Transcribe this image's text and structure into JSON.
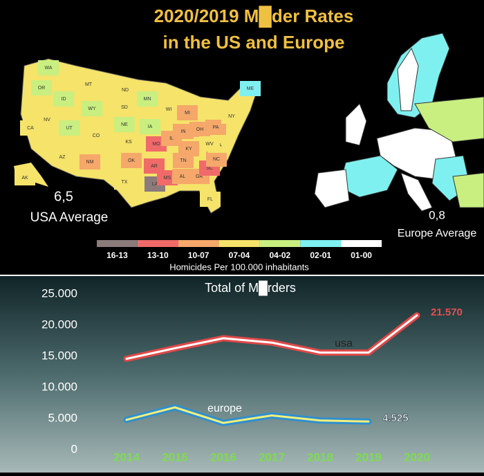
{
  "header": {
    "title_lines": [
      "2020/2019 M█der Rates",
      "in the US and Europe"
    ],
    "title_color": "#f0c040"
  },
  "maps": {
    "usa": {
      "average": "6,5",
      "average_label": "USA Average",
      "states": [
        {
          "label": "WA",
          "color": "#c8ef80"
        },
        {
          "label": "OR",
          "color": "#c8ef80"
        },
        {
          "label": "CA",
          "color": "#f5e36a"
        },
        {
          "label": "NV",
          "color": "#f5e36a"
        },
        {
          "label": "ID",
          "color": "#c8ef80"
        },
        {
          "label": "MT",
          "color": "#f5e36a"
        },
        {
          "label": "WY",
          "color": "#c8ef80"
        },
        {
          "label": "UT",
          "color": "#c8ef80"
        },
        {
          "label": "AZ",
          "color": "#f5e36a"
        },
        {
          "label": "CO",
          "color": "#f5e36a"
        },
        {
          "label": "NM",
          "color": "#f5a86a"
        },
        {
          "label": "ND",
          "color": "#f5e36a"
        },
        {
          "label": "SD",
          "color": "#f5e36a"
        },
        {
          "label": "NE",
          "color": "#c8ef80"
        },
        {
          "label": "KS",
          "color": "#f5e36a"
        },
        {
          "label": "OK",
          "color": "#f5a86a"
        },
        {
          "label": "TX",
          "color": "#f5e36a"
        },
        {
          "label": "MN",
          "color": "#c8ef80"
        },
        {
          "label": "IA",
          "color": "#c8ef80"
        },
        {
          "label": "MO",
          "color": "#f06a6a"
        },
        {
          "label": "AR",
          "color": "#f06a6a"
        },
        {
          "label": "LA",
          "color": "#8b7b7b"
        },
        {
          "label": "WI",
          "color": "#f5e36a"
        },
        {
          "label": "IL",
          "color": "#f5a86a"
        },
        {
          "label": "MS",
          "color": "#f06a6a"
        },
        {
          "label": "MI",
          "color": "#f5a86a"
        },
        {
          "label": "IN",
          "color": "#f5a86a"
        },
        {
          "label": "KY",
          "color": "#f5a86a"
        },
        {
          "label": "TN",
          "color": "#f5a86a"
        },
        {
          "label": "AL",
          "color": "#f5a86a"
        },
        {
          "label": "OH",
          "color": "#f5a86a"
        },
        {
          "label": "GA",
          "color": "#f5a86a"
        },
        {
          "label": "FL",
          "color": "#f5e36a"
        },
        {
          "label": "SC",
          "color": "#f06a6a"
        },
        {
          "label": "NC",
          "color": "#f5a86a"
        },
        {
          "label": "VA",
          "color": "#f5e36a"
        },
        {
          "label": "WV",
          "color": "#f5e36a"
        },
        {
          "label": "PA",
          "color": "#f5a86a"
        },
        {
          "label": "NY",
          "color": "#f5e36a"
        },
        {
          "label": "ME",
          "color": "#7ff0f0"
        },
        {
          "label": "AK",
          "color": "#f5e36a"
        }
      ]
    },
    "europe": {
      "average": "0,8",
      "average_label": "Europe Average"
    }
  },
  "legend": {
    "items": [
      {
        "label": "16-13",
        "color": "#8b7b7b"
      },
      {
        "label": "13-10",
        "color": "#f06a6a"
      },
      {
        "label": "10-07",
        "color": "#f5a86a"
      },
      {
        "label": "07-04",
        "color": "#f5e36a"
      },
      {
        "label": "04-02",
        "color": "#c8ef80"
      },
      {
        "label": "02-01",
        "color": "#7ff0f0"
      },
      {
        "label": "01-00",
        "color": "#ffffff"
      }
    ],
    "caption": "Homicides Per 100.000 inhabitants"
  },
  "chart_data": {
    "type": "line",
    "title": "Total of M█rders",
    "categories": [
      "2014",
      "2015",
      "2016",
      "2017",
      "2018",
      "2019",
      "2020"
    ],
    "series": [
      {
        "name": "usa",
        "color": "#e04848",
        "values": [
          14600,
          16300,
          17900,
          17200,
          15600,
          15600,
          21570
        ],
        "value_labels": [
          null,
          null,
          null,
          null,
          null,
          null,
          "21.570"
        ]
      },
      {
        "name": "europe",
        "color": "#2e8fd0",
        "values": [
          4800,
          6800,
          4300,
          5500,
          4700,
          4525,
          null
        ],
        "value_labels": [
          null,
          null,
          null,
          null,
          null,
          "4.525",
          null
        ]
      }
    ],
    "ylim": [
      0,
      25000
    ],
    "yticks": [
      0,
      {
        "value": 5000,
        "label": "5.000"
      },
      {
        "value": 10000,
        "label": "10.000"
      },
      {
        "value": 15000,
        "label": "15.000"
      },
      {
        "value": 20000,
        "label": "20.000"
      },
      {
        "value": 25000,
        "label": "25.000"
      }
    ]
  }
}
